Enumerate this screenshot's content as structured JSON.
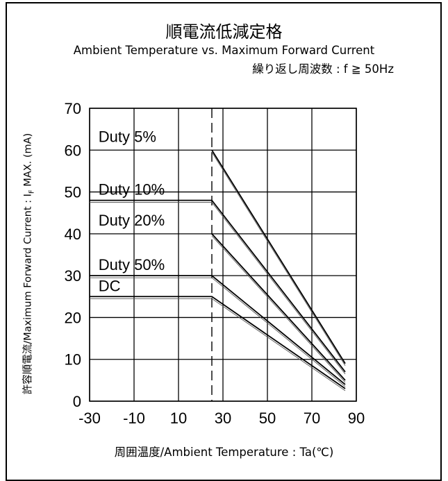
{
  "title": "順電流低減定格",
  "subtitle": "Ambient Temperature vs. Maximum Forward Current",
  "condition": "繰り返し周波数 : f ≧ 50Hz",
  "chart_data": {
    "type": "line",
    "xlabel": "周囲温度/Ambient Temperature : Ta(℃)",
    "ylabel_parts": [
      "許容順電流/Maximum Forward Current : I",
      "F",
      " MAX. (mA)"
    ],
    "xlim": [
      -30,
      90
    ],
    "ylim": [
      0,
      70
    ],
    "x_ticks": [
      -30,
      -10,
      10,
      30,
      50,
      70,
      90
    ],
    "y_ticks": [
      0,
      10,
      20,
      30,
      40,
      50,
      60,
      70
    ],
    "grid": true,
    "derating_start_temp": 25,
    "series": [
      {
        "name": "Duty 5%",
        "x": [
          25,
          85
        ],
        "y": [
          60,
          9
        ]
      },
      {
        "name": "Duty 10%",
        "x": [
          -30,
          25,
          85
        ],
        "y": [
          48,
          48,
          7
        ]
      },
      {
        "name": "Duty 20%",
        "x": [
          25,
          85
        ],
        "y": [
          40,
          5
        ]
      },
      {
        "name": "Duty 50%",
        "x": [
          -30,
          25,
          85
        ],
        "y": [
          30,
          30,
          4
        ]
      },
      {
        "name": "DC",
        "x": [
          -30,
          25,
          85
        ],
        "y": [
          25,
          25,
          3
        ]
      }
    ]
  }
}
